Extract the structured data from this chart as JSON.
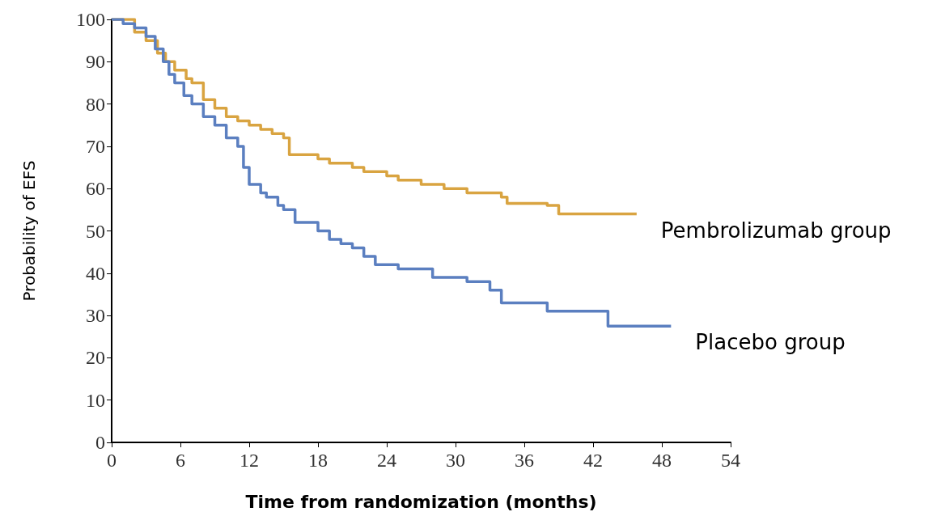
{
  "chart_data": {
    "type": "step",
    "xlabel": "Time from randomization (months)",
    "ylabel": "Probability of EFS",
    "xlim": [
      0,
      54
    ],
    "xticks": [
      0,
      6,
      12,
      18,
      24,
      30,
      36,
      42,
      48,
      54
    ],
    "ylim": [
      0,
      100
    ],
    "yticks": [
      0,
      10,
      20,
      30,
      40,
      50,
      60,
      70,
      80,
      90,
      100
    ],
    "grid": false,
    "legend": false,
    "series": [
      {
        "name": "Pembrolizumab group",
        "color": "#d9a441",
        "x": [
          0,
          2,
          3,
          4,
          4.7,
          5.5,
          6.5,
          7,
          8,
          9,
          10,
          11,
          12,
          13,
          14,
          15,
          15.5,
          18,
          19,
          21,
          22,
          24,
          25,
          27,
          29,
          31,
          32,
          34,
          34.5,
          38,
          39,
          45.8
        ],
        "values": [
          100,
          97,
          95,
          92,
          90,
          88,
          86,
          85,
          81,
          79,
          77,
          76,
          75,
          74,
          73,
          72,
          68,
          67,
          66,
          65,
          64,
          63,
          62,
          61,
          60,
          59,
          59,
          58,
          56.5,
          56,
          54,
          54
        ]
      },
      {
        "name": "Placebo group",
        "color": "#5b7fc0",
        "x": [
          0,
          1,
          2,
          3,
          3.8,
          4.5,
          5,
          5.5,
          6.3,
          7,
          8,
          9,
          10,
          11,
          11.5,
          12,
          13,
          13.5,
          14.5,
          15,
          16,
          18,
          19,
          20,
          21,
          22,
          23,
          25,
          28,
          31,
          33,
          34,
          37,
          38,
          43.3,
          48.8
        ],
        "values": [
          100,
          99,
          98,
          96,
          93,
          90,
          87,
          85,
          82,
          80,
          77,
          75,
          72,
          70,
          65,
          61,
          59,
          58,
          56,
          55,
          52,
          50,
          48,
          47,
          46,
          44,
          42,
          41,
          39,
          38,
          36,
          33,
          33,
          31,
          27.5,
          27.5
        ]
      }
    ]
  }
}
